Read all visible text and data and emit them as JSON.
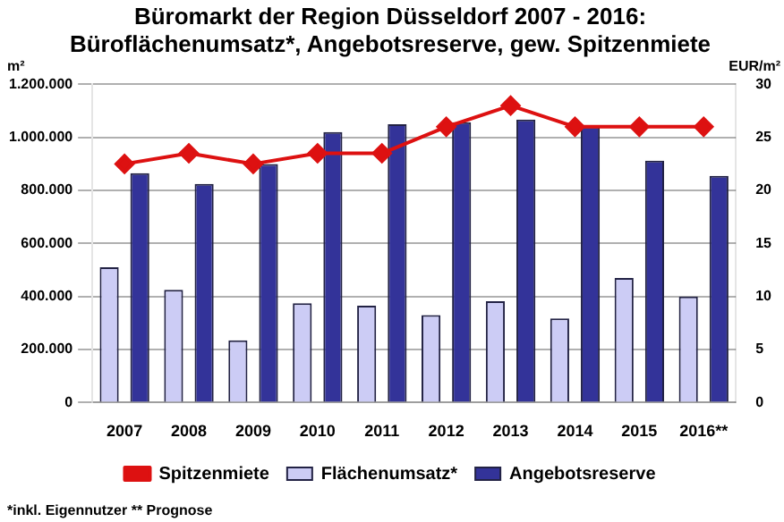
{
  "chart_data": {
    "type": "bar",
    "title": "Büromarkt der Region Düsseldorf 2007 - 2016:\nBüroflächenumsatz*, Angebotsreserve, gew. Spitzenmiete",
    "ylabel": "m²",
    "y2label": "EUR/m²",
    "categories": [
      "2007",
      "2008",
      "2009",
      "2010",
      "2011",
      "2012",
      "2013",
      "2014",
      "2015",
      "2016**"
    ],
    "series": [
      {
        "name": "Flächenumsatz*",
        "color": "#ccccf5",
        "values": [
          510000,
          425000,
          235000,
          375000,
          365000,
          330000,
          382000,
          317000,
          470000,
          400000
        ]
      },
      {
        "name": "Angebotsreserve",
        "color": "#333399",
        "values": [
          865000,
          825000,
          900000,
          1020000,
          1050000,
          1057000,
          1067000,
          1040000,
          912000,
          855000
        ]
      },
      {
        "name": "Spitzenmiete",
        "type": "line",
        "axis": "y2",
        "color": "#dd1111",
        "values": [
          22.5,
          23.5,
          22.5,
          23.5,
          23.5,
          26,
          28,
          26,
          26,
          26
        ]
      }
    ],
    "ylim": [
      0,
      1200000
    ],
    "yticks": [
      {
        "value": 0,
        "label": "0"
      },
      {
        "value": 200000,
        "label": "200.000"
      },
      {
        "value": 400000,
        "label": "400.000"
      },
      {
        "value": 600000,
        "label": "600.000"
      },
      {
        "value": 800000,
        "label": "800.000"
      },
      {
        "value": 1000000,
        "label": "1.000.000"
      },
      {
        "value": 1200000,
        "label": "1.200.000"
      }
    ],
    "y2lim": [
      0,
      30
    ],
    "y2ticks": [
      0,
      5,
      10,
      15,
      20,
      25,
      30
    ],
    "grid": "y",
    "legend": "bottom",
    "marker": "diamond",
    "annotations": [
      "*inkl. Eigennutzer ** Prognose"
    ]
  }
}
